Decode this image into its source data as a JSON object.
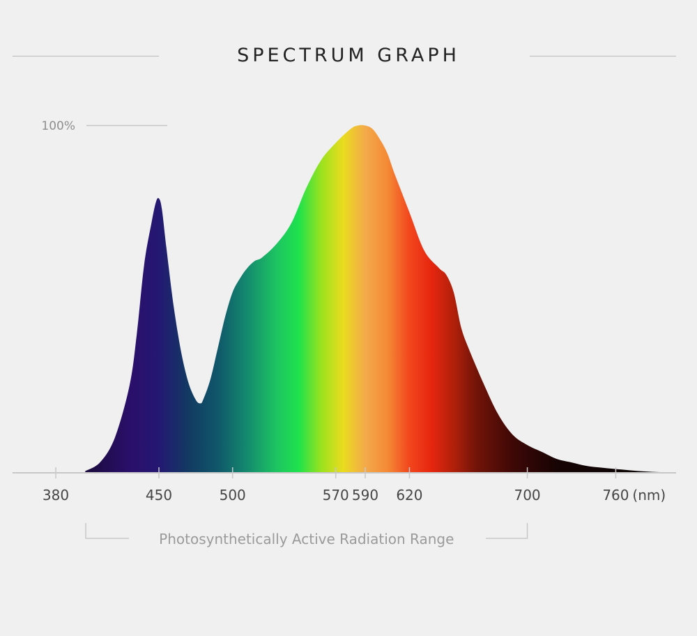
{
  "chart_data": {
    "type": "area",
    "title": "SPECTRUM GRAPH",
    "y_tick_label": "100%",
    "unit_label": "(nm)",
    "x_ticks": [
      380,
      450,
      500,
      570,
      590,
      620,
      700,
      760
    ],
    "xlim": [
      380,
      800
    ],
    "ylim": [
      0,
      100
    ],
    "range_label": "Photosynthetically Active Radiation Range",
    "range": [
      400,
      700
    ],
    "series": [
      {
        "x": [
          400,
          410,
          420,
          430,
          435,
          440,
          445,
          448,
          450,
          452,
          455,
          460,
          465,
          470,
          475,
          478,
          480,
          485,
          490,
          495,
          500,
          505,
          510,
          515,
          520,
          530,
          540,
          550,
          560,
          570,
          580,
          585,
          590,
          595,
          600,
          605,
          610,
          620,
          630,
          640,
          645,
          650,
          655,
          660,
          670,
          680,
          690,
          700,
          710,
          720,
          730,
          740,
          750,
          760,
          770,
          780,
          790,
          800
        ],
        "y": [
          0.5,
          3,
          10,
          25,
          40,
          60,
          72,
          78,
          79,
          76,
          65,
          48,
          35,
          26,
          21,
          20,
          21,
          27,
          36,
          45,
          52,
          56,
          59,
          61,
          62,
          66,
          72,
          82,
          90,
          95,
          99,
          100,
          100,
          99,
          96,
          92,
          86,
          75,
          64,
          59,
          57,
          52,
          42,
          36,
          26,
          17,
          11,
          8,
          6,
          4,
          3,
          2,
          1.5,
          1.1,
          0.7,
          0.4,
          0.2,
          0.1
        ]
      }
    ],
    "gradient": [
      {
        "nm": 400,
        "color": "#1a0b3c"
      },
      {
        "nm": 430,
        "color": "#2a0f6a"
      },
      {
        "nm": 450,
        "color": "#241873"
      },
      {
        "nm": 470,
        "color": "#123a62"
      },
      {
        "nm": 490,
        "color": "#10576a"
      },
      {
        "nm": 510,
        "color": "#148a6e"
      },
      {
        "nm": 530,
        "color": "#1dc561"
      },
      {
        "nm": 545,
        "color": "#1fe24c"
      },
      {
        "nm": 560,
        "color": "#9ae21e"
      },
      {
        "nm": 575,
        "color": "#eadc1e"
      },
      {
        "nm": 590,
        "color": "#f3aa4a"
      },
      {
        "nm": 605,
        "color": "#f48a36"
      },
      {
        "nm": 620,
        "color": "#f2461d"
      },
      {
        "nm": 635,
        "color": "#e6260f"
      },
      {
        "nm": 650,
        "color": "#b0200a"
      },
      {
        "nm": 665,
        "color": "#731408"
      },
      {
        "nm": 690,
        "color": "#3e0806"
      },
      {
        "nm": 720,
        "color": "#170404"
      },
      {
        "nm": 800,
        "color": "#050303"
      }
    ],
    "colors": {
      "axis": "#c7c7c7",
      "tick_text": "#454545",
      "ytick_text": "#8d8d8d",
      "range_text": "#9a9a9a"
    }
  }
}
